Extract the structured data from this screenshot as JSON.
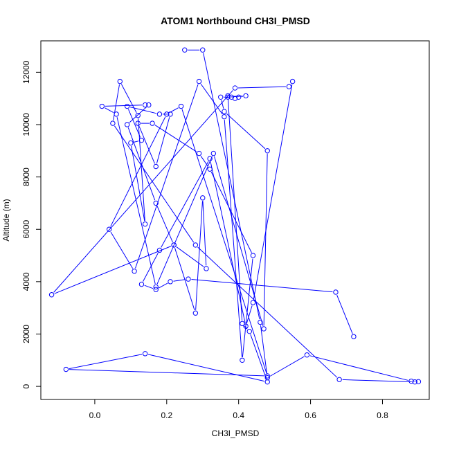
{
  "chart_data": {
    "type": "line",
    "title": "ATOM1 Northbound CH3I_PMSD",
    "xlabel": "CH3I_PMSD",
    "ylabel": "Altitude (m)",
    "xlim": [
      -0.15,
      0.93
    ],
    "ylim": [
      -500,
      13200
    ],
    "x_ticks": [
      0.0,
      0.2,
      0.4,
      0.6,
      0.8
    ],
    "x_tick_labels": [
      "0.0",
      "0.2",
      "0.4",
      "0.6",
      "0.8"
    ],
    "y_ticks": [
      0,
      2000,
      4000,
      6000,
      8000,
      10000,
      12000
    ],
    "y_tick_labels": [
      "0",
      "2000",
      "4000",
      "6000",
      "8000",
      "10000",
      "12000"
    ],
    "grid": false,
    "legend": "none",
    "color": "#0000FF",
    "series": [
      {
        "x": [
          0.25,
          0.3,
          0.46,
          0.48,
          0.59,
          0.88,
          0.9,
          0.89,
          0.68,
          0.28,
          0.05,
          0.07,
          0.12,
          0.14,
          0.1,
          0.13,
          0.09,
          0.18,
          0.21,
          0.17,
          0.12,
          0.16,
          0.29,
          0.32,
          0.44,
          0.41,
          0.36,
          0.29,
          0.11,
          0.04,
          0.2,
          0.24,
          0.48,
          -0.08,
          0.14,
          0.48,
          0.43,
          0.41,
          0.37,
          0.37,
          0.42,
          0.4,
          0.39,
          0.38,
          0.35,
          0.36,
          0.48,
          0.47,
          0.33,
          0.17,
          0.06,
          0.02,
          0.14,
          0.15,
          0.09,
          0.17,
          0.22,
          0.28,
          0.3,
          0.31,
          0.22,
          -0.12,
          0.39,
          0.54,
          0.55,
          0.44,
          0.42,
          0.32,
          0.18,
          0.13,
          0.17,
          0.21,
          0.26,
          0.67,
          0.72
        ],
        "y": [
          12850,
          12850,
          2450,
          330,
          1200,
          200,
          180,
          170,
          260,
          5400,
          10050,
          11650,
          10350,
          6200,
          9300,
          9400,
          10700,
          10400,
          10400,
          8400,
          10050,
          10050,
          8900,
          8300,
          5000,
          1000,
          10300,
          11650,
          4400,
          6000,
          10400,
          10700,
          400,
          650,
          1250,
          170,
          2100,
          2400,
          11100,
          11050,
          11100,
          11050,
          11000,
          11050,
          11050,
          10500,
          9000,
          2200,
          8900,
          3800,
          10400,
          10700,
          10750,
          10750,
          10000,
          7000,
          5400,
          2800,
          7200,
          4500,
          5400,
          3500,
          11400,
          11450,
          11650,
          3200,
          2300,
          8700,
          5200,
          3900,
          3700,
          4000,
          4100,
          3600,
          1900
        ]
      }
    ]
  }
}
